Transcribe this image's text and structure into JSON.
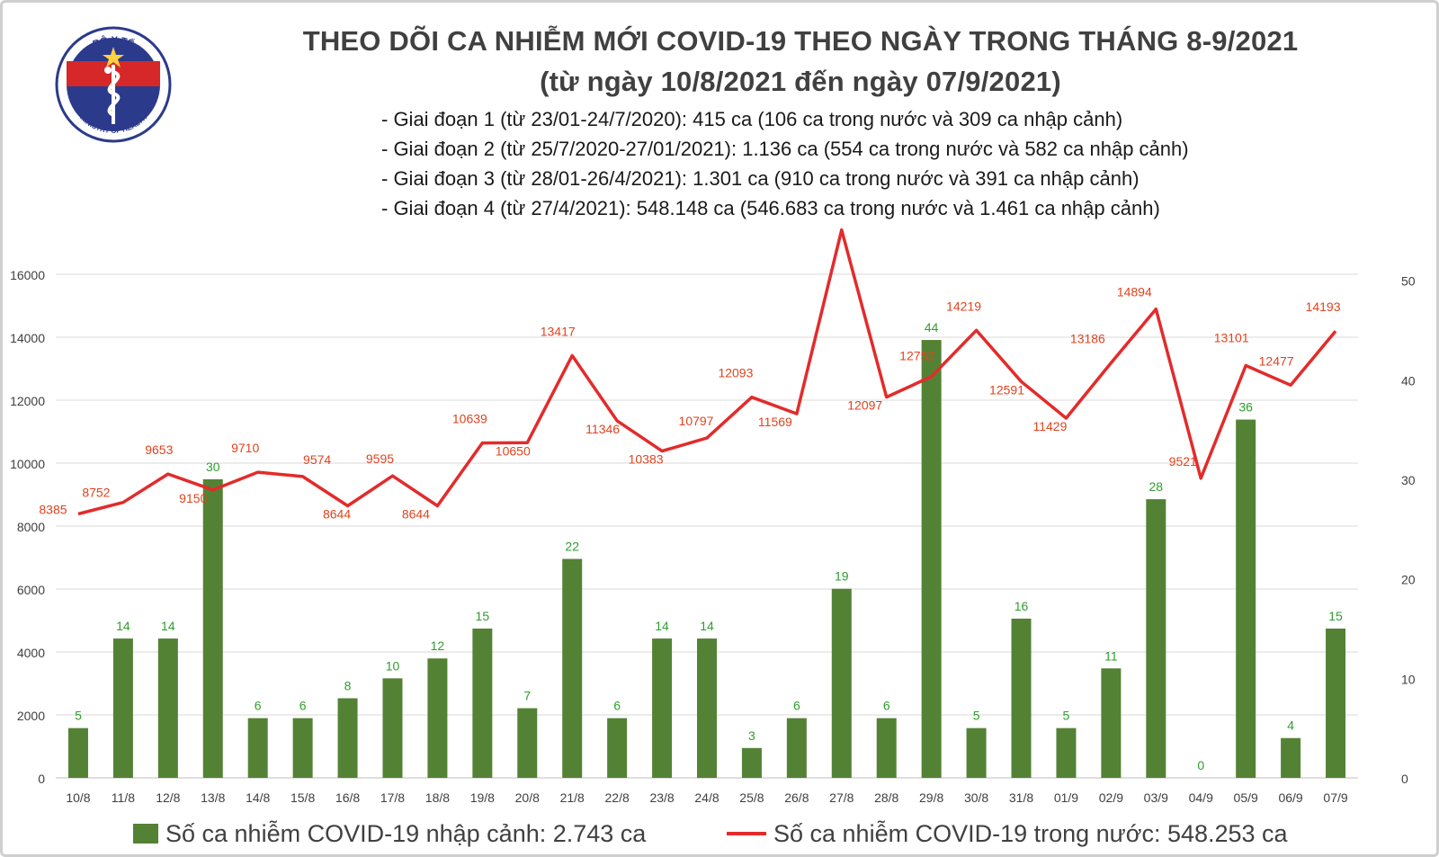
{
  "header": {
    "title_line1": "THEO DÕI CA NHIỄM MỚI COVID-19 THEO NGÀY TRONG THÁNG 8-9/2021",
    "title_line2": "(từ ngày 10/8/2021 đến ngày 07/9/2021)",
    "phases": [
      "- Giai đoạn 1 (từ 23/01-24/7/2020): 415 ca (106 ca trong nước và 309 ca nhập cảnh)",
      "- Giai đoạn 2 (từ 25/7/2020-27/01/2021): 1.136 ca (554 ca trong nước và 582 ca nhập cảnh)",
      "- Giai đoạn 3 (từ 28/01-26/4/2021): 1.301 ca (910 ca trong nước và 391 ca nhập cảnh)",
      "- Giai đoạn 4 (từ 27/4/2021): 548.148 ca (546.683 ca trong nước và 1.461 ca nhập cảnh)"
    ]
  },
  "logo": {
    "top_text": "BỘ Y TẾ",
    "bottom_text": "MINISTRY OF HEALTH",
    "icon": "caduceus-icon"
  },
  "colors": {
    "bar": "#548235",
    "bar_label": "#2e9e2e",
    "line": "#e32b2b",
    "line_label": "#e0431f",
    "grid": "#d9d9d9",
    "axis_text": "#404040"
  },
  "chart_data": {
    "type": "bar+line",
    "categories": [
      "10/8",
      "11/8",
      "12/8",
      "13/8",
      "14/8",
      "15/8",
      "16/8",
      "17/8",
      "18/8",
      "19/8",
      "20/8",
      "21/8",
      "22/8",
      "23/8",
      "24/8",
      "25/8",
      "26/8",
      "27/8",
      "28/8",
      "29/8",
      "30/8",
      "31/8",
      "01/9",
      "02/9",
      "03/9",
      "04/9",
      "05/9",
      "06/9",
      "07/9"
    ],
    "series": [
      {
        "name": "Số ca nhiễm COVID-19 nhập cảnh: 2.743 ca",
        "type": "bar",
        "axis": "right",
        "values": [
          5,
          14,
          14,
          30,
          6,
          6,
          8,
          10,
          12,
          15,
          7,
          22,
          6,
          14,
          14,
          3,
          6,
          19,
          6,
          44,
          5,
          16,
          5,
          11,
          28,
          0,
          36,
          4,
          15
        ]
      },
      {
        "name": "Số ca nhiễm COVID-19 trong nước: 548.253 ca",
        "type": "line",
        "axis": "left",
        "values": [
          8385,
          8752,
          9653,
          9150,
          9710,
          9574,
          8644,
          9595,
          8644,
          10639,
          10650,
          13417,
          11346,
          10383,
          10797,
          12093,
          11569,
          17409,
          12097,
          12752,
          14219,
          12591,
          11429,
          13186,
          14894,
          9521,
          13101,
          12477,
          14193
        ]
      }
    ],
    "y_left": {
      "ticks": [
        "0",
        "2000",
        "4000",
        "6000",
        "8000",
        "10000",
        "12000",
        "14000",
        "16000"
      ],
      "ylim": [
        0,
        16000
      ]
    },
    "y_right": {
      "ticks": [
        "0",
        "10",
        "20",
        "30",
        "40",
        "50"
      ],
      "ylim": [
        0,
        50.6
      ]
    },
    "grid": true,
    "legend_position": "bottom"
  },
  "legend": {
    "bar_label": "Số ca nhiễm COVID-19 nhập cảnh: 2.743 ca",
    "line_label": "Số ca nhiễm COVID-19 trong nước: 548.253 ca"
  }
}
